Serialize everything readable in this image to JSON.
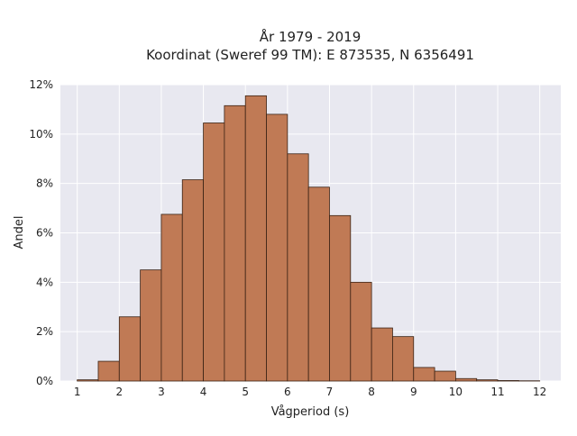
{
  "chart_data": {
    "type": "bar",
    "title_line1": "År 1979 - 2019",
    "title_line2": "Koordinat (Sweref 99 TM): E 873535, N 6356491",
    "xlabel": "Vågperiod (s)",
    "ylabel": "Andel",
    "xlim": [
      0.6,
      12.5
    ],
    "ylim": [
      0,
      12
    ],
    "x_ticks": [
      1,
      2,
      3,
      4,
      5,
      6,
      7,
      8,
      9,
      10,
      11,
      12
    ],
    "x_tick_labels": [
      "1",
      "2",
      "3",
      "4",
      "5",
      "6",
      "7",
      "8",
      "9",
      "10",
      "11",
      "12"
    ],
    "y_ticks": [
      0,
      2,
      4,
      6,
      8,
      10,
      12
    ],
    "y_tick_labels": [
      "0%",
      "2%",
      "4%",
      "6%",
      "8%",
      "10%",
      "12%"
    ],
    "grid": true,
    "bins": [
      {
        "start": 1.0,
        "end": 1.5,
        "value": 0.05
      },
      {
        "start": 1.5,
        "end": 2.0,
        "value": 0.8
      },
      {
        "start": 2.0,
        "end": 2.5,
        "value": 2.6
      },
      {
        "start": 2.5,
        "end": 3.0,
        "value": 4.5
      },
      {
        "start": 3.0,
        "end": 3.5,
        "value": 6.75
      },
      {
        "start": 3.5,
        "end": 4.0,
        "value": 8.15
      },
      {
        "start": 4.0,
        "end": 4.5,
        "value": 10.45
      },
      {
        "start": 4.5,
        "end": 5.0,
        "value": 11.15
      },
      {
        "start": 5.0,
        "end": 5.5,
        "value": 11.55
      },
      {
        "start": 5.5,
        "end": 6.0,
        "value": 10.8
      },
      {
        "start": 6.0,
        "end": 6.5,
        "value": 9.2
      },
      {
        "start": 6.5,
        "end": 7.0,
        "value": 7.85
      },
      {
        "start": 7.0,
        "end": 7.5,
        "value": 6.7
      },
      {
        "start": 7.5,
        "end": 8.0,
        "value": 4.0
      },
      {
        "start": 8.0,
        "end": 8.5,
        "value": 2.15
      },
      {
        "start": 8.5,
        "end": 9.0,
        "value": 1.8
      },
      {
        "start": 9.0,
        "end": 9.5,
        "value": 0.55
      },
      {
        "start": 9.5,
        "end": 10.0,
        "value": 0.4
      },
      {
        "start": 10.0,
        "end": 10.5,
        "value": 0.1
      },
      {
        "start": 10.5,
        "end": 11.0,
        "value": 0.05
      },
      {
        "start": 11.0,
        "end": 11.5,
        "value": 0.02
      },
      {
        "start": 11.5,
        "end": 12.0,
        "value": 0.01
      }
    ],
    "colors": {
      "bar_fill": "#c07a55",
      "bar_stroke": "#3a2214",
      "plot_background": "#e8e8f0",
      "grid": "#ffffff"
    }
  }
}
